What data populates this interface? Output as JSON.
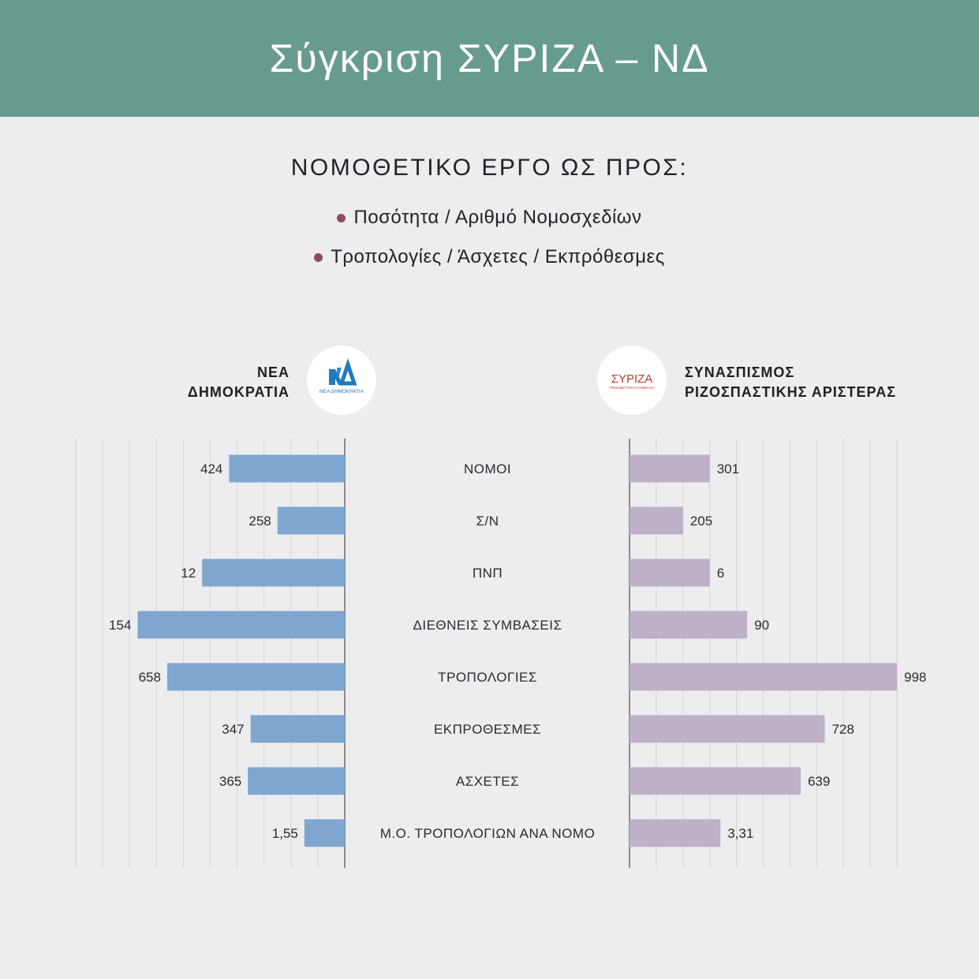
{
  "header": {
    "title": "Σύγκριση ΣΥΡΙΖΑ – ΝΔ"
  },
  "subtitle": "ΝΟΜΟΘΕΤΙΚΟ ΕΡΓΟ ΩΣ ΠΡΟΣ:",
  "bullets": [
    "Ποσότητα / Αριθμό Νομοσχεδίων",
    "Τροπολογίες / Άσχετες / Εκπρόθεσμες"
  ],
  "colors": {
    "header_bg": "#689b8f",
    "page_bg": "#ededef",
    "nd_bar": "#7fa6cf",
    "syriza_bar": "#bdb0c8",
    "bullet_dot": "#8b4b63",
    "nd_logo": "#1e7bbf",
    "syriza_logo": "#c0392b"
  },
  "parties": {
    "left": {
      "name_line1": "ΝΕΑ",
      "name_line2": "ΔΗΜΟΚΡΑΤΙΑ",
      "logo_text": "ΝΔ",
      "logo_subtext": "ΝΕΑ ΔΗΜΟΚΡΑΤΙΑ"
    },
    "right": {
      "name_line1": "ΣΥΝΑΣΠΙΣΜΟΣ",
      "name_line2": "ΡΙΖΟΣΠΑΣΤΙΚΗΣ ΑΡΙΣΤΕΡΑΣ",
      "logo_text": "ΣΥΡΙΖΑ",
      "logo_subtext": "ΠΡΟΟΔΕΥΤΙΚΗ ΣΥΜΜΑΧΙΑ"
    }
  },
  "chart_data": {
    "type": "bar",
    "orientation": "horizontal-mirrored",
    "categories": [
      "ΝΟΜΟΙ",
      "Σ/Ν",
      "ΠΝΠ",
      "ΔΙΕΘΝΕΙΣ ΣΥΜΒΑΣΕΙΣ",
      "ΤΡΟΠΟΛΟΓΙΕΣ",
      "ΕΚΠΡΟΘΕΣΜΕΣ",
      "ΑΣΧΕΤΕΣ",
      "Μ.Ο. ΤΡΟΠΟΛΟΓΙΩΝ ΑΝΑ ΝΟΜΟ"
    ],
    "series": [
      {
        "name": "ΝΕΑ ΔΗΜΟΚΡΑΤΙΑ",
        "side": "left",
        "labels": [
          "424",
          "258",
          "12",
          "154",
          "658",
          "347",
          "365",
          "1,55"
        ],
        "values": [
          424,
          258,
          12,
          154,
          658,
          347,
          365,
          1.55
        ],
        "bar_fraction": [
          0.43,
          0.25,
          0.53,
          0.77,
          0.66,
          0.35,
          0.36,
          0.15
        ]
      },
      {
        "name": "ΣΥΝΑΣΠΙΣΜΟΣ ΡΙΖΟΣΠΑΣΤΙΚΗΣ ΑΡΙΣΤΕΡΑΣ",
        "side": "right",
        "labels": [
          "301",
          "205",
          "6",
          "90",
          "998",
          "728",
          "639",
          "3,31"
        ],
        "values": [
          301,
          205,
          6,
          90,
          998,
          728,
          639,
          3.31
        ],
        "bar_fraction": [
          0.3,
          0.2,
          0.3,
          0.44,
          1.0,
          0.73,
          0.64,
          0.34
        ]
      }
    ],
    "gridlines": 10,
    "grid": true
  }
}
